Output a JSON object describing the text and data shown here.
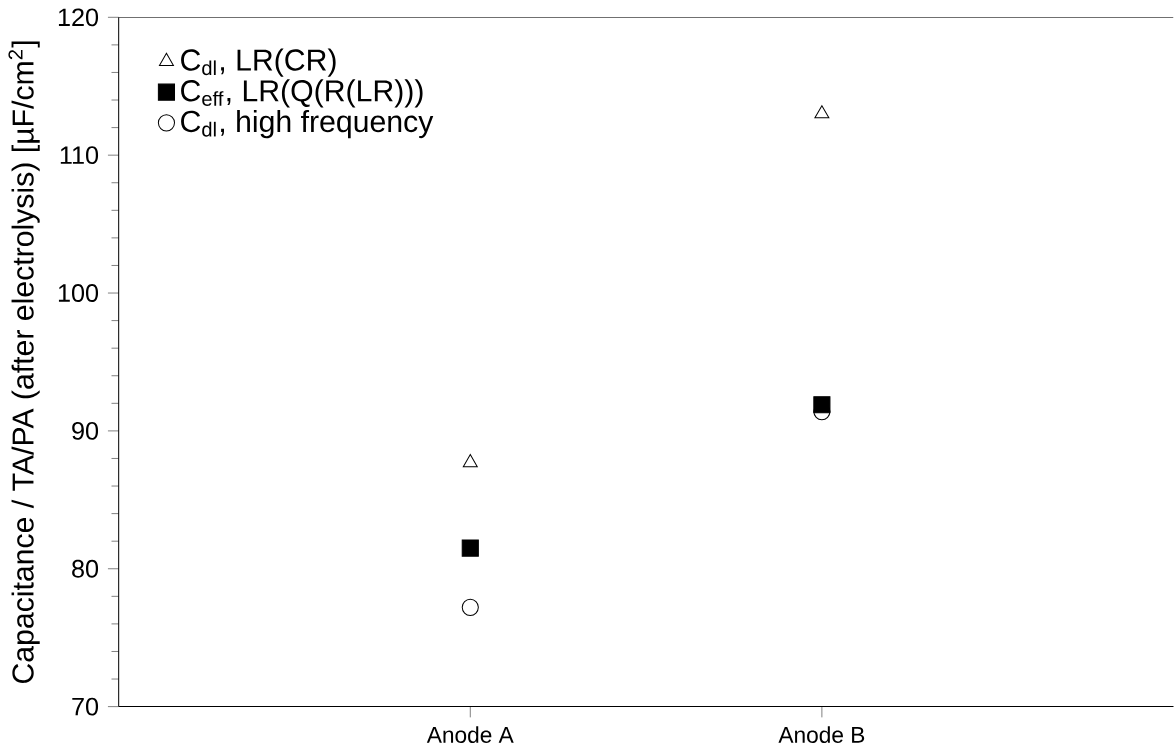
{
  "chart_data": {
    "type": "scatter",
    "ylabel": "Capacitance / TA/PA (after electrolysis) [µF/cm$^{2}$]",
    "categories": [
      "Anode  A",
      "Anode  B"
    ],
    "series": [
      {
        "name": "C$_{dl}$, LR(CR)",
        "color": "#000000",
        "marker": "triangle",
        "values": [
          87.7,
          113
        ]
      },
      {
        "name": "C$_{eff}$, LR(Q(R(LR)))",
        "color": "#000000",
        "marker": "square",
        "values": [
          81.5,
          91.9
        ]
      },
      {
        "name": "C$_{dl}$, high frequency",
        "color": "#000000",
        "marker": "circle",
        "values": [
          77.2,
          91.4
        ]
      }
    ],
    "ylim": [
      70,
      120
    ],
    "yticks": [
      70,
      80,
      90,
      100,
      110,
      120
    ],
    "legend": "top left",
    "grid": false
  }
}
